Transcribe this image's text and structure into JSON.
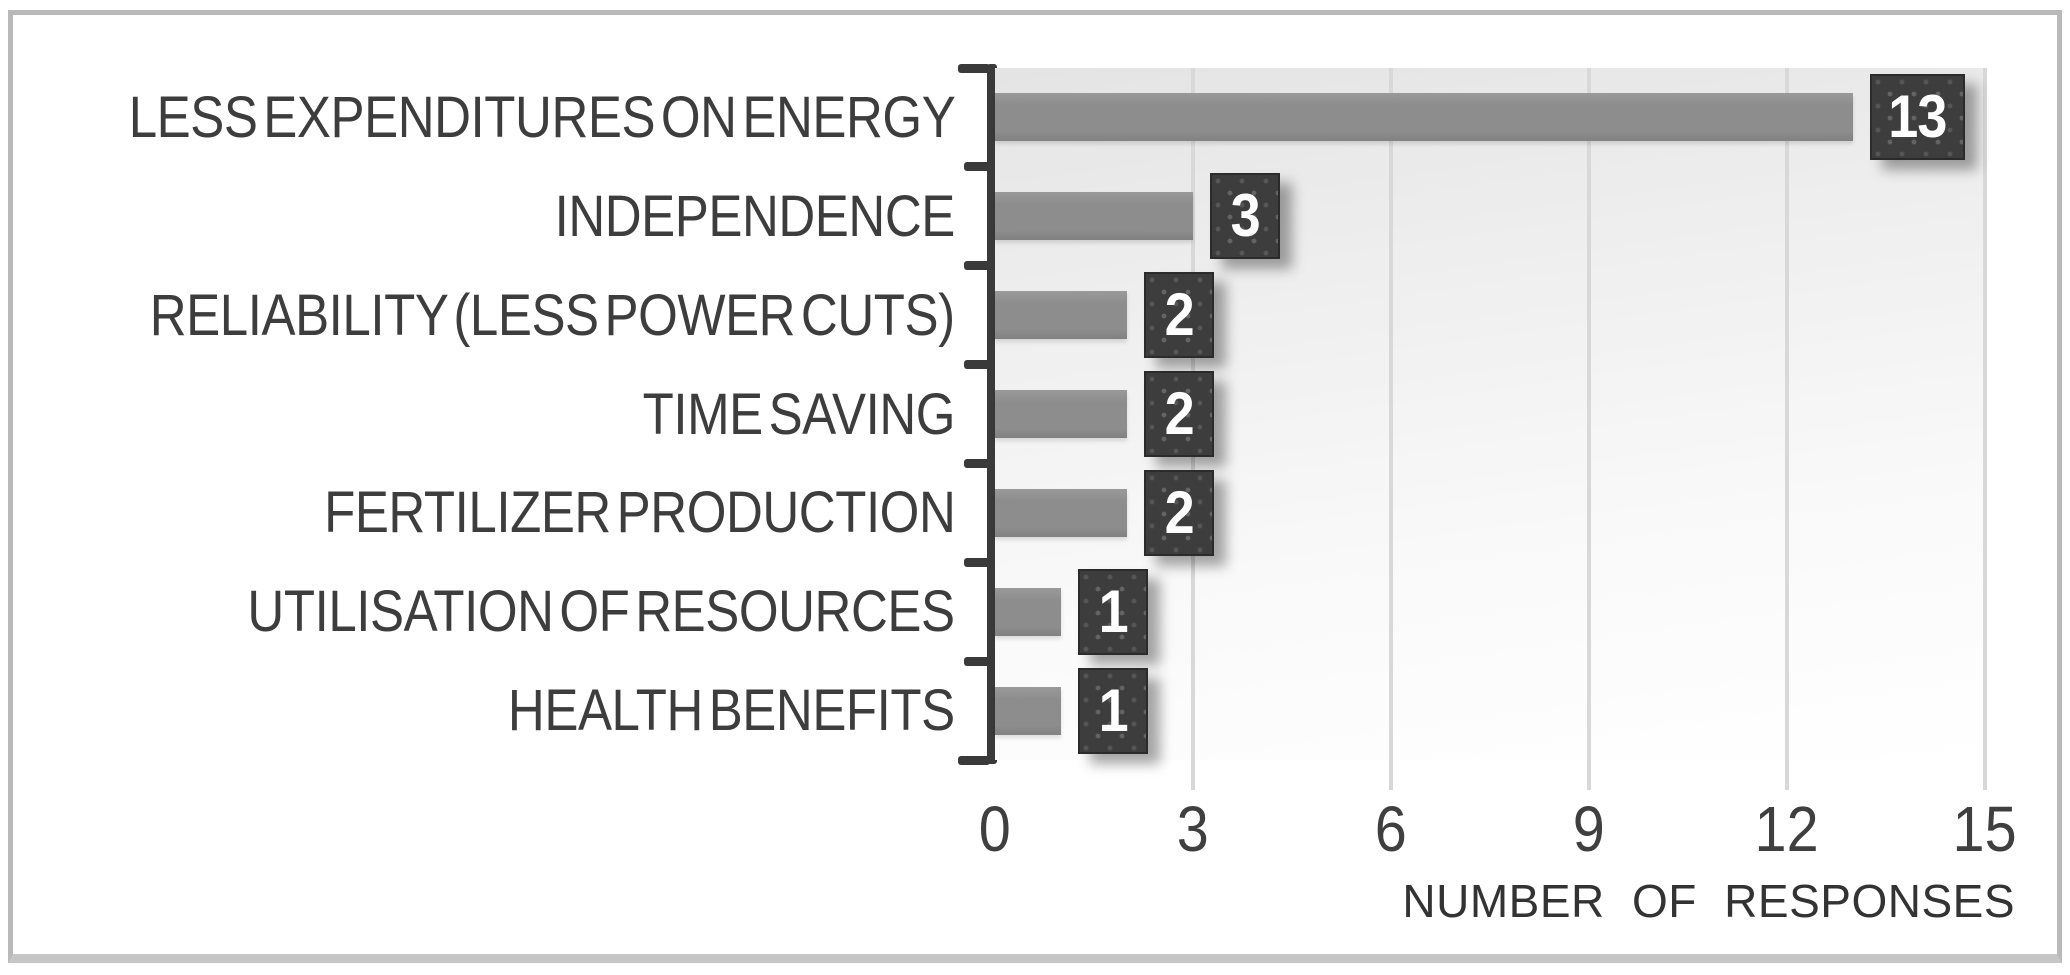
{
  "chart_data": {
    "type": "bar",
    "orientation": "horizontal",
    "title": "",
    "categories": [
      "LESS EXPENDITURES ON ENERGY",
      "INDEPENDENCE",
      "RELIABILITY (LESS POWER CUTS)",
      "TIME SAVING",
      "FERTILIZER PRODUCTION",
      "UTILISATION OF RESOURCES",
      "HEALTH BENEFITS"
    ],
    "values": [
      13,
      3,
      2,
      2,
      2,
      1,
      1
    ],
    "data_labels": [
      "13",
      "3",
      "2",
      "2",
      "2",
      "1",
      "1"
    ],
    "xlabel": "NUMBER OF RESPONSES",
    "ylabel": "",
    "xticks": [
      0,
      3,
      6,
      9,
      12,
      15
    ],
    "xlim": [
      0,
      15
    ],
    "grid": true,
    "legend": false,
    "colors": {
      "bar": "#8d8d8d",
      "data_label_bg": "#3d3d3d",
      "data_label_text": "#ffffff",
      "gridline": "#d8d8d8",
      "axis_line": "#3a3a3a",
      "axis_text": "#3f3f3f",
      "plot_bg_top": "#e4e4e4",
      "plot_bg_bottom": "#ffffff",
      "frame_border": "#b9b9b9"
    }
  }
}
